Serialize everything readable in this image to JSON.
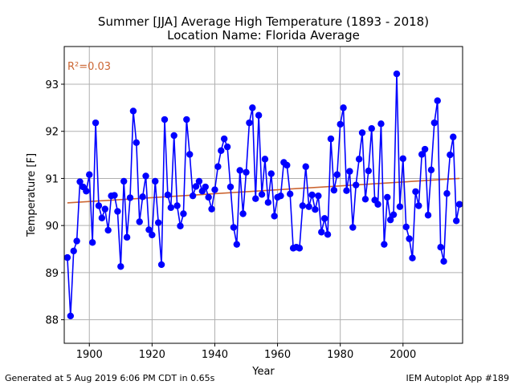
{
  "chart_data": {
    "type": "line",
    "title": "Summer [JJA] Average High Temperature (1893 - 2018)",
    "subtitle": "Location Name: Florida Average",
    "xlabel": "Year",
    "ylabel": "Temperature [F]",
    "xlim": [
      1892,
      2019
    ],
    "ylim": [
      87.5,
      93.8
    ],
    "xticks": [
      "1900",
      "1920",
      "1940",
      "1960",
      "1980",
      "2000"
    ],
    "yticks": [
      "88",
      "89",
      "90",
      "91",
      "92",
      "93"
    ],
    "grid": true,
    "series_color": "#0000ff",
    "trend_color": "#cc6633",
    "r2_label": "R²=0.03",
    "trend": {
      "x": [
        1893,
        2018
      ],
      "y": [
        90.48,
        91.0
      ]
    },
    "x": [
      1893,
      1894,
      1895,
      1896,
      1897,
      1898,
      1899,
      1900,
      1901,
      1902,
      1903,
      1904,
      1905,
      1906,
      1907,
      1908,
      1909,
      1910,
      1911,
      1912,
      1913,
      1914,
      1915,
      1916,
      1917,
      1918,
      1919,
      1920,
      1921,
      1922,
      1923,
      1924,
      1925,
      1926,
      1927,
      1928,
      1929,
      1930,
      1931,
      1932,
      1933,
      1934,
      1935,
      1936,
      1937,
      1938,
      1939,
      1940,
      1941,
      1942,
      1943,
      1944,
      1945,
      1946,
      1947,
      1948,
      1949,
      1950,
      1951,
      1952,
      1953,
      1954,
      1955,
      1956,
      1957,
      1958,
      1959,
      1960,
      1961,
      1962,
      1963,
      1964,
      1965,
      1966,
      1967,
      1968,
      1969,
      1970,
      1971,
      1972,
      1973,
      1974,
      1975,
      1976,
      1977,
      1978,
      1979,
      1980,
      1981,
      1982,
      1983,
      1984,
      1985,
      1986,
      1987,
      1988,
      1989,
      1990,
      1991,
      1992,
      1993,
      1994,
      1995,
      1996,
      1997,
      1998,
      1999,
      2000,
      2001,
      2002,
      2003,
      2004,
      2005,
      2006,
      2007,
      2008,
      2009,
      2010,
      2011,
      2012,
      2013,
      2014,
      2015,
      2016,
      2017,
      2018
    ],
    "y": [
      89.32,
      88.08,
      89.46,
      89.67,
      90.93,
      90.82,
      90.73,
      91.08,
      89.64,
      92.18,
      90.42,
      90.16,
      90.35,
      89.9,
      90.63,
      90.64,
      90.3,
      89.13,
      90.94,
      89.75,
      90.59,
      92.43,
      91.76,
      90.08,
      90.61,
      91.05,
      89.91,
      89.8,
      90.94,
      90.06,
      89.17,
      92.25,
      90.65,
      90.38,
      91.91,
      90.42,
      89.99,
      90.25,
      92.25,
      91.51,
      90.63,
      90.83,
      90.94,
      90.73,
      90.82,
      90.6,
      90.35,
      90.76,
      91.25,
      91.59,
      91.84,
      91.67,
      90.82,
      89.96,
      89.6,
      91.17,
      90.25,
      91.13,
      92.18,
      92.5,
      90.57,
      92.34,
      90.66,
      91.41,
      90.49,
      91.1,
      90.2,
      90.6,
      90.63,
      91.34,
      91.28,
      90.67,
      89.52,
      89.54,
      89.52,
      90.42,
      91.25,
      90.4,
      90.65,
      90.34,
      90.63,
      89.86,
      90.15,
      89.81,
      91.84,
      90.75,
      91.08,
      92.15,
      92.5,
      90.74,
      91.15,
      89.96,
      90.86,
      91.41,
      91.97,
      90.56,
      91.16,
      92.06,
      90.54,
      90.45,
      92.16,
      89.6,
      90.6,
      90.12,
      90.23,
      93.22,
      90.4,
      91.42,
      89.97,
      89.72,
      89.31,
      90.72,
      90.42,
      91.51,
      91.62,
      90.22,
      91.18,
      92.18,
      92.65,
      89.54,
      89.24,
      90.68,
      91.5,
      91.88,
      90.1,
      90.45
    ]
  },
  "footer": {
    "left": "Generated at 5 Aug 2019 6:06 PM CDT in 0.65s",
    "right": "IEM Autoplot App #189"
  }
}
